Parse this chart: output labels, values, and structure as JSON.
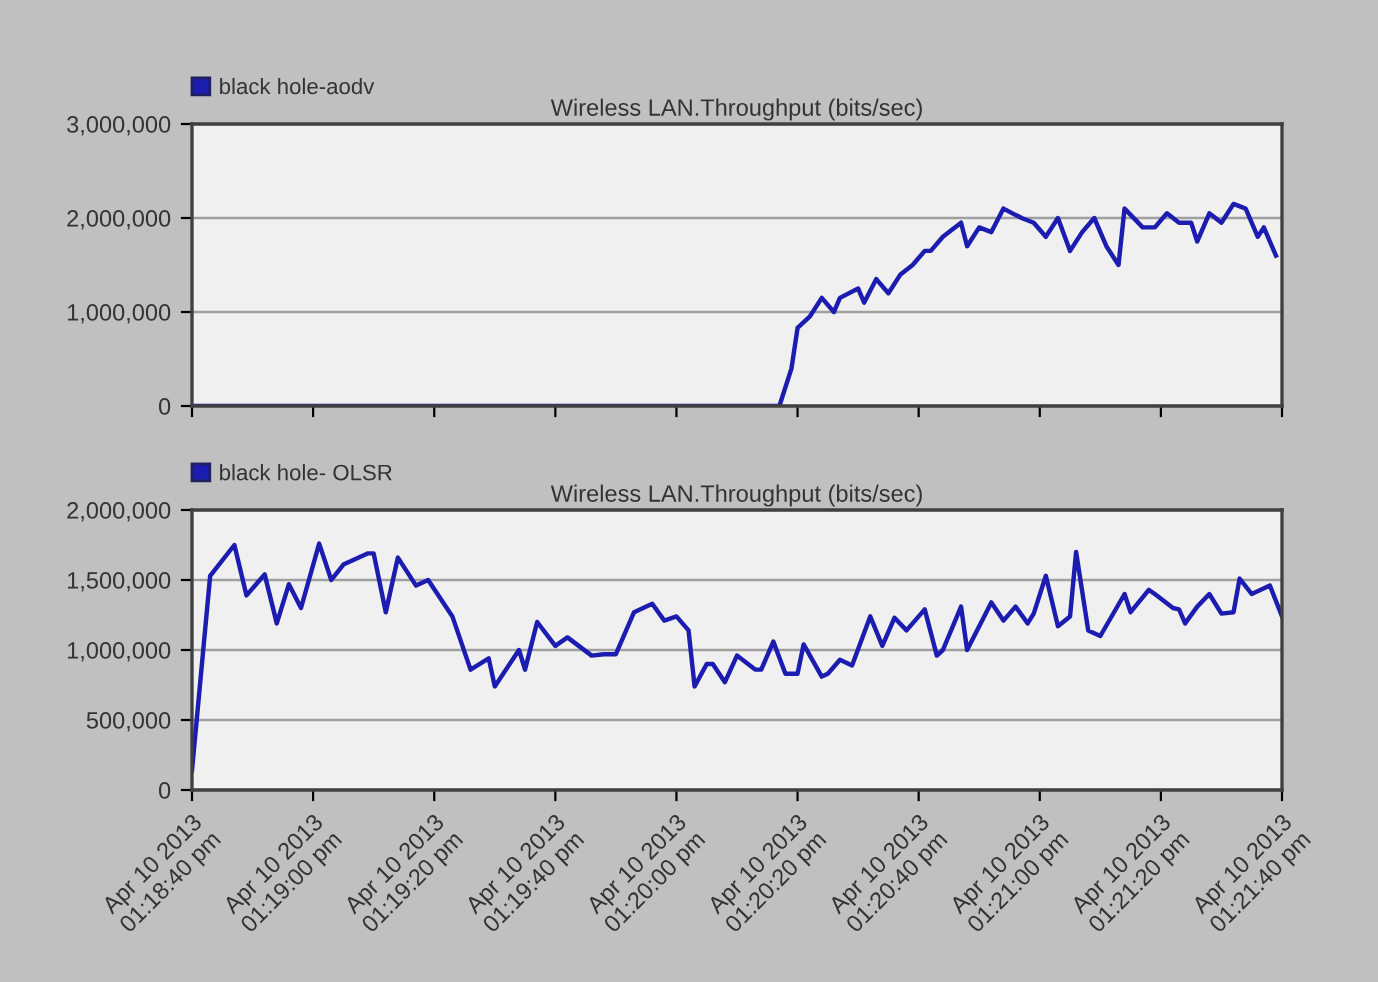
{
  "chart_data": [
    {
      "type": "line",
      "title": "Wireless LAN.Throughput (bits/sec)",
      "legend": "top left",
      "grid": "y",
      "tick_labels": "y",
      "marker": "none",
      "line_style": "solid",
      "x": [
        "2013-04-10T13:18:40",
        "2013-04-10T13:20:17",
        "2013-04-10T13:20:19",
        "2013-04-10T13:20:20",
        "2013-04-10T13:20:22",
        "2013-04-10T13:20:24",
        "2013-04-10T13:20:26",
        "2013-04-10T13:20:27",
        "2013-04-10T13:20:30",
        "2013-04-10T13:20:31",
        "2013-04-10T13:20:33",
        "2013-04-10T13:20:35",
        "2013-04-10T13:20:37",
        "2013-04-10T13:20:39",
        "2013-04-10T13:20:41",
        "2013-04-10T13:20:42",
        "2013-04-10T13:20:44",
        "2013-04-10T13:20:47",
        "2013-04-10T13:20:48",
        "2013-04-10T13:20:50",
        "2013-04-10T13:20:52",
        "2013-04-10T13:20:54",
        "2013-04-10T13:20:57",
        "2013-04-10T13:20:59",
        "2013-04-10T13:21:01",
        "2013-04-10T13:21:03",
        "2013-04-10T13:21:05",
        "2013-04-10T13:21:07",
        "2013-04-10T13:21:09",
        "2013-04-10T13:21:11",
        "2013-04-10T13:21:13",
        "2013-04-10T13:21:14",
        "2013-04-10T13:21:17",
        "2013-04-10T13:21:19",
        "2013-04-10T13:21:21",
        "2013-04-10T13:21:23",
        "2013-04-10T13:21:25",
        "2013-04-10T13:21:26",
        "2013-04-10T13:21:28",
        "2013-04-10T13:21:30",
        "2013-04-10T13:21:32",
        "2013-04-10T13:21:34",
        "2013-04-10T13:21:36",
        "2013-04-10T13:21:37",
        "2013-04-10T13:21:39"
      ],
      "series": [
        {
          "name": "black hole-aodv",
          "color": "#1c1cb0",
          "values": [
            0,
            0,
            400000,
            830000,
            950000,
            1150000,
            1000000,
            1150000,
            1250000,
            1100000,
            1350000,
            1200000,
            1400000,
            1500000,
            1650000,
            1650000,
            1800000,
            1950000,
            1700000,
            1900000,
            1850000,
            2100000,
            2000000,
            1950000,
            1800000,
            2000000,
            1650000,
            1850000,
            2000000,
            1700000,
            1500000,
            2100000,
            1900000,
            1900000,
            2050000,
            1950000,
            1950000,
            1750000,
            2050000,
            1950000,
            2150000,
            2100000,
            1800000,
            1900000,
            1600000
          ]
        }
      ],
      "xlim": [
        "2013-04-10T13:18:40",
        "2013-04-10T13:21:40"
      ],
      "xticks": [
        {
          "value": "2013-04-10T13:18:40",
          "label": null
        },
        {
          "value": "2013-04-10T13:19:00",
          "label": null
        },
        {
          "value": "2013-04-10T13:19:20",
          "label": null
        },
        {
          "value": "2013-04-10T13:19:40",
          "label": null
        },
        {
          "value": "2013-04-10T13:20:00",
          "label": null
        },
        {
          "value": "2013-04-10T13:20:20",
          "label": null
        },
        {
          "value": "2013-04-10T13:20:40",
          "label": null
        },
        {
          "value": "2013-04-10T13:21:00",
          "label": null
        },
        {
          "value": "2013-04-10T13:21:20",
          "label": null
        },
        {
          "value": "2013-04-10T13:21:40",
          "label": null
        }
      ],
      "ylim": [
        0,
        3000000
      ],
      "yticks": [
        0,
        {
          "value": 1000000,
          "label": "1,000,000"
        },
        {
          "value": 2000000,
          "label": "2,000,000"
        },
        {
          "value": 3000000,
          "label": "3,000,000"
        }
      ]
    },
    {
      "type": "line",
      "title": "Wireless LAN.Throughput (bits/sec)",
      "legend": "top left",
      "grid": "y",
      "marker": "none",
      "line_style": "solid",
      "x": [
        "2013-04-10T13:18:40",
        "2013-04-10T13:18:43",
        "2013-04-10T13:18:47",
        "2013-04-10T13:18:49",
        "2013-04-10T13:18:52",
        "2013-04-10T13:18:54",
        "2013-04-10T13:18:56",
        "2013-04-10T13:18:58",
        "2013-04-10T13:19:01",
        "2013-04-10T13:19:03",
        "2013-04-10T13:19:05",
        "2013-04-10T13:19:09",
        "2013-04-10T13:19:10",
        "2013-04-10T13:19:12",
        "2013-04-10T13:19:14",
        "2013-04-10T13:19:17",
        "2013-04-10T13:19:19",
        "2013-04-10T13:19:23",
        "2013-04-10T13:19:26",
        "2013-04-10T13:19:29",
        "2013-04-10T13:19:30",
        "2013-04-10T13:19:34",
        "2013-04-10T13:19:35",
        "2013-04-10T13:19:37",
        "2013-04-10T13:19:40",
        "2013-04-10T13:19:42",
        "2013-04-10T13:19:46",
        "2013-04-10T13:19:48",
        "2013-04-10T13:19:50",
        "2013-04-10T13:19:53",
        "2013-04-10T13:19:56",
        "2013-04-10T13:19:58",
        "2013-04-10T13:20:00",
        "2013-04-10T13:20:02",
        "2013-04-10T13:20:03",
        "2013-04-10T13:20:05",
        "2013-04-10T13:20:06",
        "2013-04-10T13:20:08",
        "2013-04-10T13:20:10",
        "2013-04-10T13:20:13",
        "2013-04-10T13:20:14",
        "2013-04-10T13:20:16",
        "2013-04-10T13:20:18",
        "2013-04-10T13:20:20",
        "2013-04-10T13:20:21",
        "2013-04-10T13:20:24",
        "2013-04-10T13:20:25",
        "2013-04-10T13:20:27",
        "2013-04-10T13:20:29",
        "2013-04-10T13:20:32",
        "2013-04-10T13:20:34",
        "2013-04-10T13:20:36",
        "2013-04-10T13:20:38",
        "2013-04-10T13:20:41",
        "2013-04-10T13:20:43",
        "2013-04-10T13:20:44",
        "2013-04-10T13:20:47",
        "2013-04-10T13:20:48",
        "2013-04-10T13:20:52",
        "2013-04-10T13:20:54",
        "2013-04-10T13:20:56",
        "2013-04-10T13:20:58",
        "2013-04-10T13:20:59",
        "2013-04-10T13:21:01",
        "2013-04-10T13:21:03",
        "2013-04-10T13:21:05",
        "2013-04-10T13:21:06",
        "2013-04-10T13:21:08",
        "2013-04-10T13:21:10",
        "2013-04-10T13:21:14",
        "2013-04-10T13:21:15",
        "2013-04-10T13:21:18",
        "2013-04-10T13:21:19",
        "2013-04-10T13:21:22",
        "2013-04-10T13:21:23",
        "2013-04-10T13:21:24",
        "2013-04-10T13:21:26",
        "2013-04-10T13:21:28",
        "2013-04-10T13:21:30",
        "2013-04-10T13:21:32",
        "2013-04-10T13:21:33",
        "2013-04-10T13:21:35",
        "2013-04-10T13:21:38",
        "2013-04-10T13:21:40"
      ],
      "series": [
        {
          "name": "black hole- OLSR",
          "color": "#1c1cb0",
          "values": [
            140000,
            1530000,
            1750000,
            1390000,
            1540000,
            1190000,
            1470000,
            1300000,
            1760000,
            1500000,
            1610000,
            1690000,
            1690000,
            1270000,
            1660000,
            1460000,
            1500000,
            1240000,
            860000,
            940000,
            740000,
            1000000,
            860000,
            1200000,
            1030000,
            1090000,
            960000,
            970000,
            970000,
            1270000,
            1330000,
            1210000,
            1240000,
            1140000,
            740000,
            900000,
            900000,
            770000,
            960000,
            860000,
            860000,
            1060000,
            830000,
            830000,
            1040000,
            810000,
            830000,
            930000,
            890000,
            1240000,
            1030000,
            1230000,
            1140000,
            1290000,
            960000,
            1000000,
            1310000,
            1000000,
            1340000,
            1210000,
            1310000,
            1190000,
            1260000,
            1530000,
            1170000,
            1240000,
            1700000,
            1140000,
            1100000,
            1400000,
            1270000,
            1430000,
            1400000,
            1300000,
            1290000,
            1190000,
            1310000,
            1400000,
            1260000,
            1270000,
            1510000,
            1400000,
            1460000,
            1240000
          ]
        }
      ],
      "xlim": [
        "2013-04-10T13:18:40",
        "2013-04-10T13:21:40"
      ],
      "xticks": [
        {
          "value": "2013-04-10T13:18:40",
          "label": "Apr 10 2013\n01:18:40 pm"
        },
        {
          "value": "2013-04-10T13:19:00",
          "label": "Apr 10 2013\n01:19:00 pm"
        },
        {
          "value": "2013-04-10T13:19:20",
          "label": "Apr 10 2013\n01:19:20 pm"
        },
        {
          "value": "2013-04-10T13:19:40",
          "label": "Apr 10 2013\n01:19:40 pm"
        },
        {
          "value": "2013-04-10T13:20:00",
          "label": "Apr 10 2013\n01:20:00 pm"
        },
        {
          "value": "2013-04-10T13:20:20",
          "label": "Apr 10 2013\n01:20:20 pm"
        },
        {
          "value": "2013-04-10T13:20:40",
          "label": "Apr 10 2013\n01:20:40 pm"
        },
        {
          "value": "2013-04-10T13:21:00",
          "label": "Apr 10 2013\n01:21:00 pm"
        },
        {
          "value": "2013-04-10T13:21:20",
          "label": "Apr 10 2013\n01:21:20 pm"
        },
        {
          "value": "2013-04-10T13:21:40",
          "label": "Apr 10 2013\n01:21:40 pm"
        }
      ],
      "ylim": [
        0,
        2000000
      ],
      "yticks": [
        0,
        {
          "value": 500000,
          "label": "500,000"
        },
        {
          "value": 1000000,
          "label": "1,000,000"
        },
        {
          "value": 1500000,
          "label": "1,500,000"
        },
        {
          "value": 2000000,
          "label": "2,000,000"
        }
      ]
    }
  ]
}
